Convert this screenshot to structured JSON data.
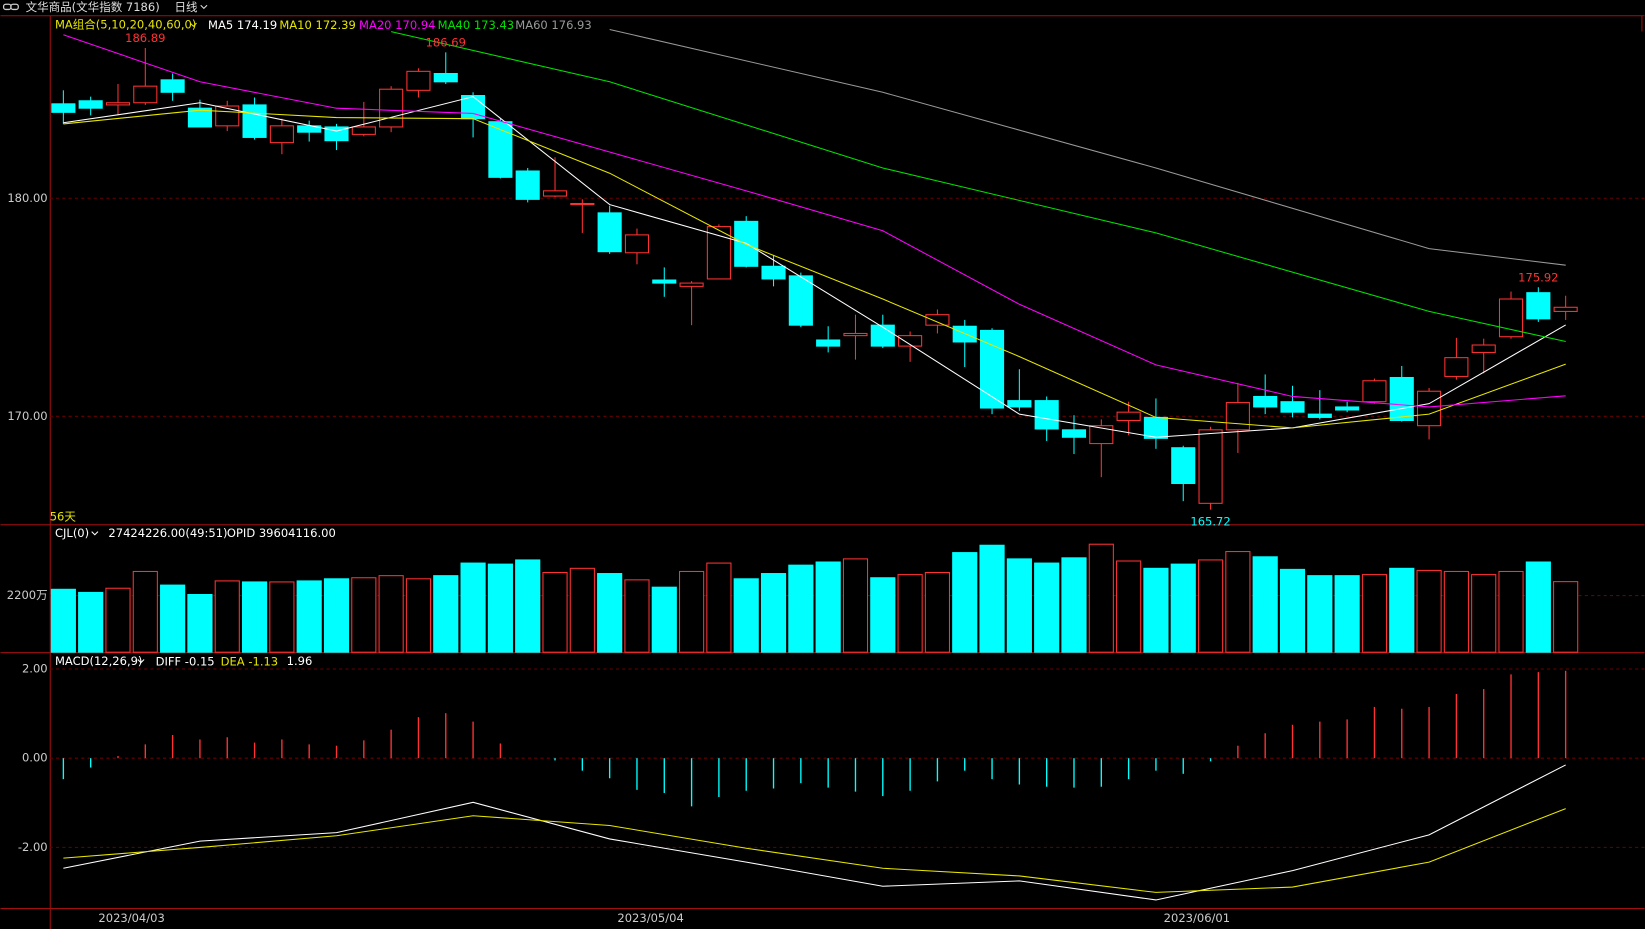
{
  "header": {
    "title": "文华商品(文华指数 7186)",
    "period": "日线"
  },
  "chart_data": [
    {
      "type": "candlestick",
      "label": "MA组合(5,10,20,40,60,0)",
      "count_label": "56天",
      "categories": [
        null,
        null,
        "2023/04/03",
        null,
        null,
        null,
        null,
        null,
        null,
        null,
        null,
        null,
        null,
        null,
        null,
        null,
        null,
        null,
        null,
        null,
        null,
        "2023/05/04",
        null,
        null,
        null,
        null,
        null,
        null,
        null,
        null,
        null,
        null,
        null,
        null,
        null,
        null,
        null,
        null,
        null,
        null,
        null,
        "2023/06/01",
        null,
        null,
        null,
        null,
        null,
        null,
        null,
        null,
        null,
        null,
        null,
        null,
        null,
        null
      ],
      "open": [
        184.33,
        184.47,
        184.28,
        184.38,
        185.43,
        184.13,
        183.32,
        184.28,
        182.55,
        183.32,
        183.27,
        182.93,
        183.27,
        184.95,
        185.72,
        184.71,
        183.51,
        181.25,
        180.1,
        179.71,
        179.33,
        177.5,
        176.25,
        175.96,
        176.3,
        178.94,
        176.88,
        176.44,
        173.5,
        173.7,
        174.18,
        173.22,
        174.18,
        174.13,
        173.94,
        170.72,
        170.72,
        169.38,
        168.75,
        169.81,
        169.95,
        168.56,
        166.01,
        169.38,
        170.91,
        170.67,
        170.1,
        170.43,
        170.67,
        171.78,
        169.57,
        171.83,
        172.93,
        173.65,
        175.67,
        174.81
      ],
      "high": [
        184.95,
        184.66,
        185.24,
        186.89,
        185.72,
        184.52,
        184.47,
        184.62,
        183.65,
        183.56,
        183.41,
        184.42,
        185.14,
        185.96,
        186.69,
        184.86,
        183.65,
        181.39,
        181.88,
        179.95,
        179.66,
        178.61,
        176.83,
        176.2,
        178.8,
        179.18,
        177.4,
        176.59,
        174.13,
        174.66,
        174.66,
        173.89,
        174.9,
        174.42,
        174.04,
        172.16,
        170.91,
        170.05,
        169.86,
        170.67,
        170.82,
        168.65,
        169.52,
        171.54,
        171.92,
        171.4,
        171.2,
        170.67,
        171.73,
        172.31,
        171.3,
        173.6,
        173.56,
        175.72,
        175.92,
        175.53
      ],
      "low": [
        183.41,
        183.8,
        183.8,
        184.28,
        184.47,
        183.27,
        183.08,
        182.69,
        182.02,
        182.6,
        182.21,
        182.84,
        183.03,
        184.62,
        185.24,
        182.79,
        180.91,
        179.81,
        180.05,
        178.41,
        177.45,
        176.97,
        175.48,
        174.18,
        176.3,
        176.83,
        175.96,
        174.09,
        172.93,
        172.6,
        173.13,
        172.5,
        173.8,
        172.26,
        170.1,
        170.24,
        168.87,
        168.27,
        167.21,
        169.13,
        168.51,
        166.11,
        165.72,
        168.32,
        170.1,
        169.95,
        169.86,
        170.19,
        170.58,
        169.76,
        168.94,
        171.68,
        171.97,
        173.56,
        174.33,
        174.42
      ],
      "close": [
        183.94,
        184.13,
        184.38,
        185.14,
        184.86,
        183.27,
        184.23,
        182.79,
        183.32,
        183.03,
        182.64,
        183.27,
        185.0,
        185.82,
        185.34,
        183.65,
        180.96,
        179.95,
        180.34,
        179.76,
        177.55,
        178.32,
        176.11,
        176.11,
        178.7,
        176.88,
        176.3,
        174.18,
        173.22,
        173.8,
        173.22,
        173.7,
        174.66,
        173.41,
        170.38,
        170.43,
        169.42,
        169.04,
        169.57,
        170.19,
        168.99,
        166.92,
        169.38,
        170.63,
        170.43,
        170.19,
        169.95,
        170.29,
        171.63,
        169.81,
        171.15,
        172.69,
        173.27,
        175.38,
        174.47,
        175.0
      ],
      "up_color": "#ff3232",
      "down_color": "#00ffff",
      "labeled_highs": [
        3,
        14,
        54
      ],
      "labeled_lows": [
        42
      ],
      "ylim": [
        165.05,
        188.37
      ],
      "yticks": [
        {
          "value": 170,
          "label": "170.00"
        },
        {
          "value": 180,
          "label": "180.00"
        }
      ],
      "grid": true,
      "ma": [
        {
          "name": "MA5",
          "color": "#ffffff",
          "x": [
            0,
            5,
            10,
            15,
            20,
            25,
            30,
            35,
            40,
            45,
            50,
            55
          ],
          "values": [
            183.46,
            184.38,
            183.08,
            184.66,
            179.71,
            177.93,
            174.09,
            170.1,
            169.04,
            169.47,
            170.58,
            174.19
          ]
        },
        {
          "name": "MA10",
          "color": "#e6e600",
          "x": [
            0,
            5,
            10,
            15,
            20,
            25,
            30,
            35,
            40,
            45,
            50,
            55
          ],
          "values": [
            183.41,
            184.04,
            183.7,
            183.65,
            181.15,
            177.88,
            175.38,
            172.74,
            169.95,
            169.47,
            170.1,
            172.39
          ]
        },
        {
          "name": "MA20",
          "color": "#ff00ff",
          "x": [
            0,
            5,
            10,
            15,
            20,
            25,
            30,
            35,
            40,
            45,
            50,
            55
          ],
          "values": [
            187.5,
            185.34,
            184.13,
            183.89,
            182.12,
            180.34,
            178.51,
            175.14,
            172.36,
            170.91,
            170.43,
            170.94
          ]
        },
        {
          "name": "MA40",
          "color": "#00e000",
          "x": [
            12,
            20,
            30,
            40,
            50,
            55
          ],
          "values": [
            187.64,
            185.34,
            181.39,
            178.41,
            174.81,
            173.43
          ]
        },
        {
          "name": "MA60",
          "color": "#999999",
          "x": [
            20,
            30,
            40,
            50,
            55
          ],
          "values": [
            187.74,
            184.86,
            181.39,
            177.69,
            176.93
          ]
        }
      ]
    },
    {
      "type": "bar",
      "label": "CJL(0)",
      "volume_text": "27424226.00(49:51)",
      "opid_text": "OPID 39604116.00",
      "values": [
        2444,
        2322,
        2485,
        3137,
        2607,
        2241,
        2770,
        2730,
        2730,
        2770,
        2852,
        2893,
        2974,
        2852,
        2974,
        3463,
        3422,
        3585,
        3096,
        3259,
        3056,
        2811,
        2526,
        3137,
        3463,
        2852,
        3056,
        3382,
        3504,
        3626,
        2893,
        3015,
        3096,
        3870,
        4156,
        3626,
        3463,
        3667,
        4196,
        3544,
        3259,
        3422,
        3585,
        3911,
        3707,
        3218,
        2974,
        2974,
        3015,
        3259,
        3178,
        3137,
        3015,
        3137,
        3504,
        2742
      ],
      "ylim": [
        0,
        4890
      ],
      "yticks": [
        {
          "value": 2200,
          "label": "2200万"
        }
      ],
      "grid": true
    },
    {
      "type": "macd",
      "label": "MACD(12,26,9)",
      "histogram": [
        -0.47,
        -0.21,
        0.05,
        0.31,
        0.52,
        0.42,
        0.47,
        0.35,
        0.42,
        0.31,
        0.28,
        0.4,
        0.64,
        0.92,
        1.01,
        0.82,
        0.33,
        0,
        -0.05,
        -0.28,
        -0.45,
        -0.71,
        -0.78,
        -1.08,
        -0.87,
        -0.73,
        -0.68,
        -0.56,
        -0.66,
        -0.75,
        -0.85,
        -0.73,
        -0.52,
        -0.28,
        -0.47,
        -0.59,
        -0.64,
        -0.66,
        -0.64,
        -0.47,
        -0.28,
        -0.35,
        -0.07,
        0.28,
        0.56,
        0.75,
        0.82,
        0.87,
        1.15,
        1.11,
        1.15,
        1.44,
        1.55,
        1.88,
        1.93,
        1.96
      ],
      "series": [
        {
          "name": "DIFF",
          "color": "#ffffff",
          "x": [
            0,
            5,
            10,
            15,
            20,
            25,
            30,
            35,
            40,
            45,
            50,
            55
          ],
          "values": [
            -2.47,
            -1.86,
            -1.67,
            -0.99,
            -1.81,
            -2.33,
            -2.87,
            -2.75,
            -3.18,
            -2.52,
            -1.72,
            -0.15
          ]
        },
        {
          "name": "DEA",
          "color": "#e6e600",
          "x": [
            0,
            5,
            10,
            15,
            20,
            25,
            30,
            35,
            40,
            45,
            50,
            55
          ],
          "values": [
            -2.24,
            -2.0,
            -1.74,
            -1.29,
            -1.51,
            -2.02,
            -2.47,
            -2.64,
            -3.01,
            -2.89,
            -2.33,
            -1.13
          ]
        }
      ],
      "ylim": [
        -3.36,
        2.33
      ],
      "yticks": [
        {
          "value": 2,
          "label": "2.00"
        },
        {
          "value": 0,
          "label": "0.00"
        },
        {
          "value": -2,
          "label": "-2.00"
        }
      ],
      "grid": true
    }
  ]
}
